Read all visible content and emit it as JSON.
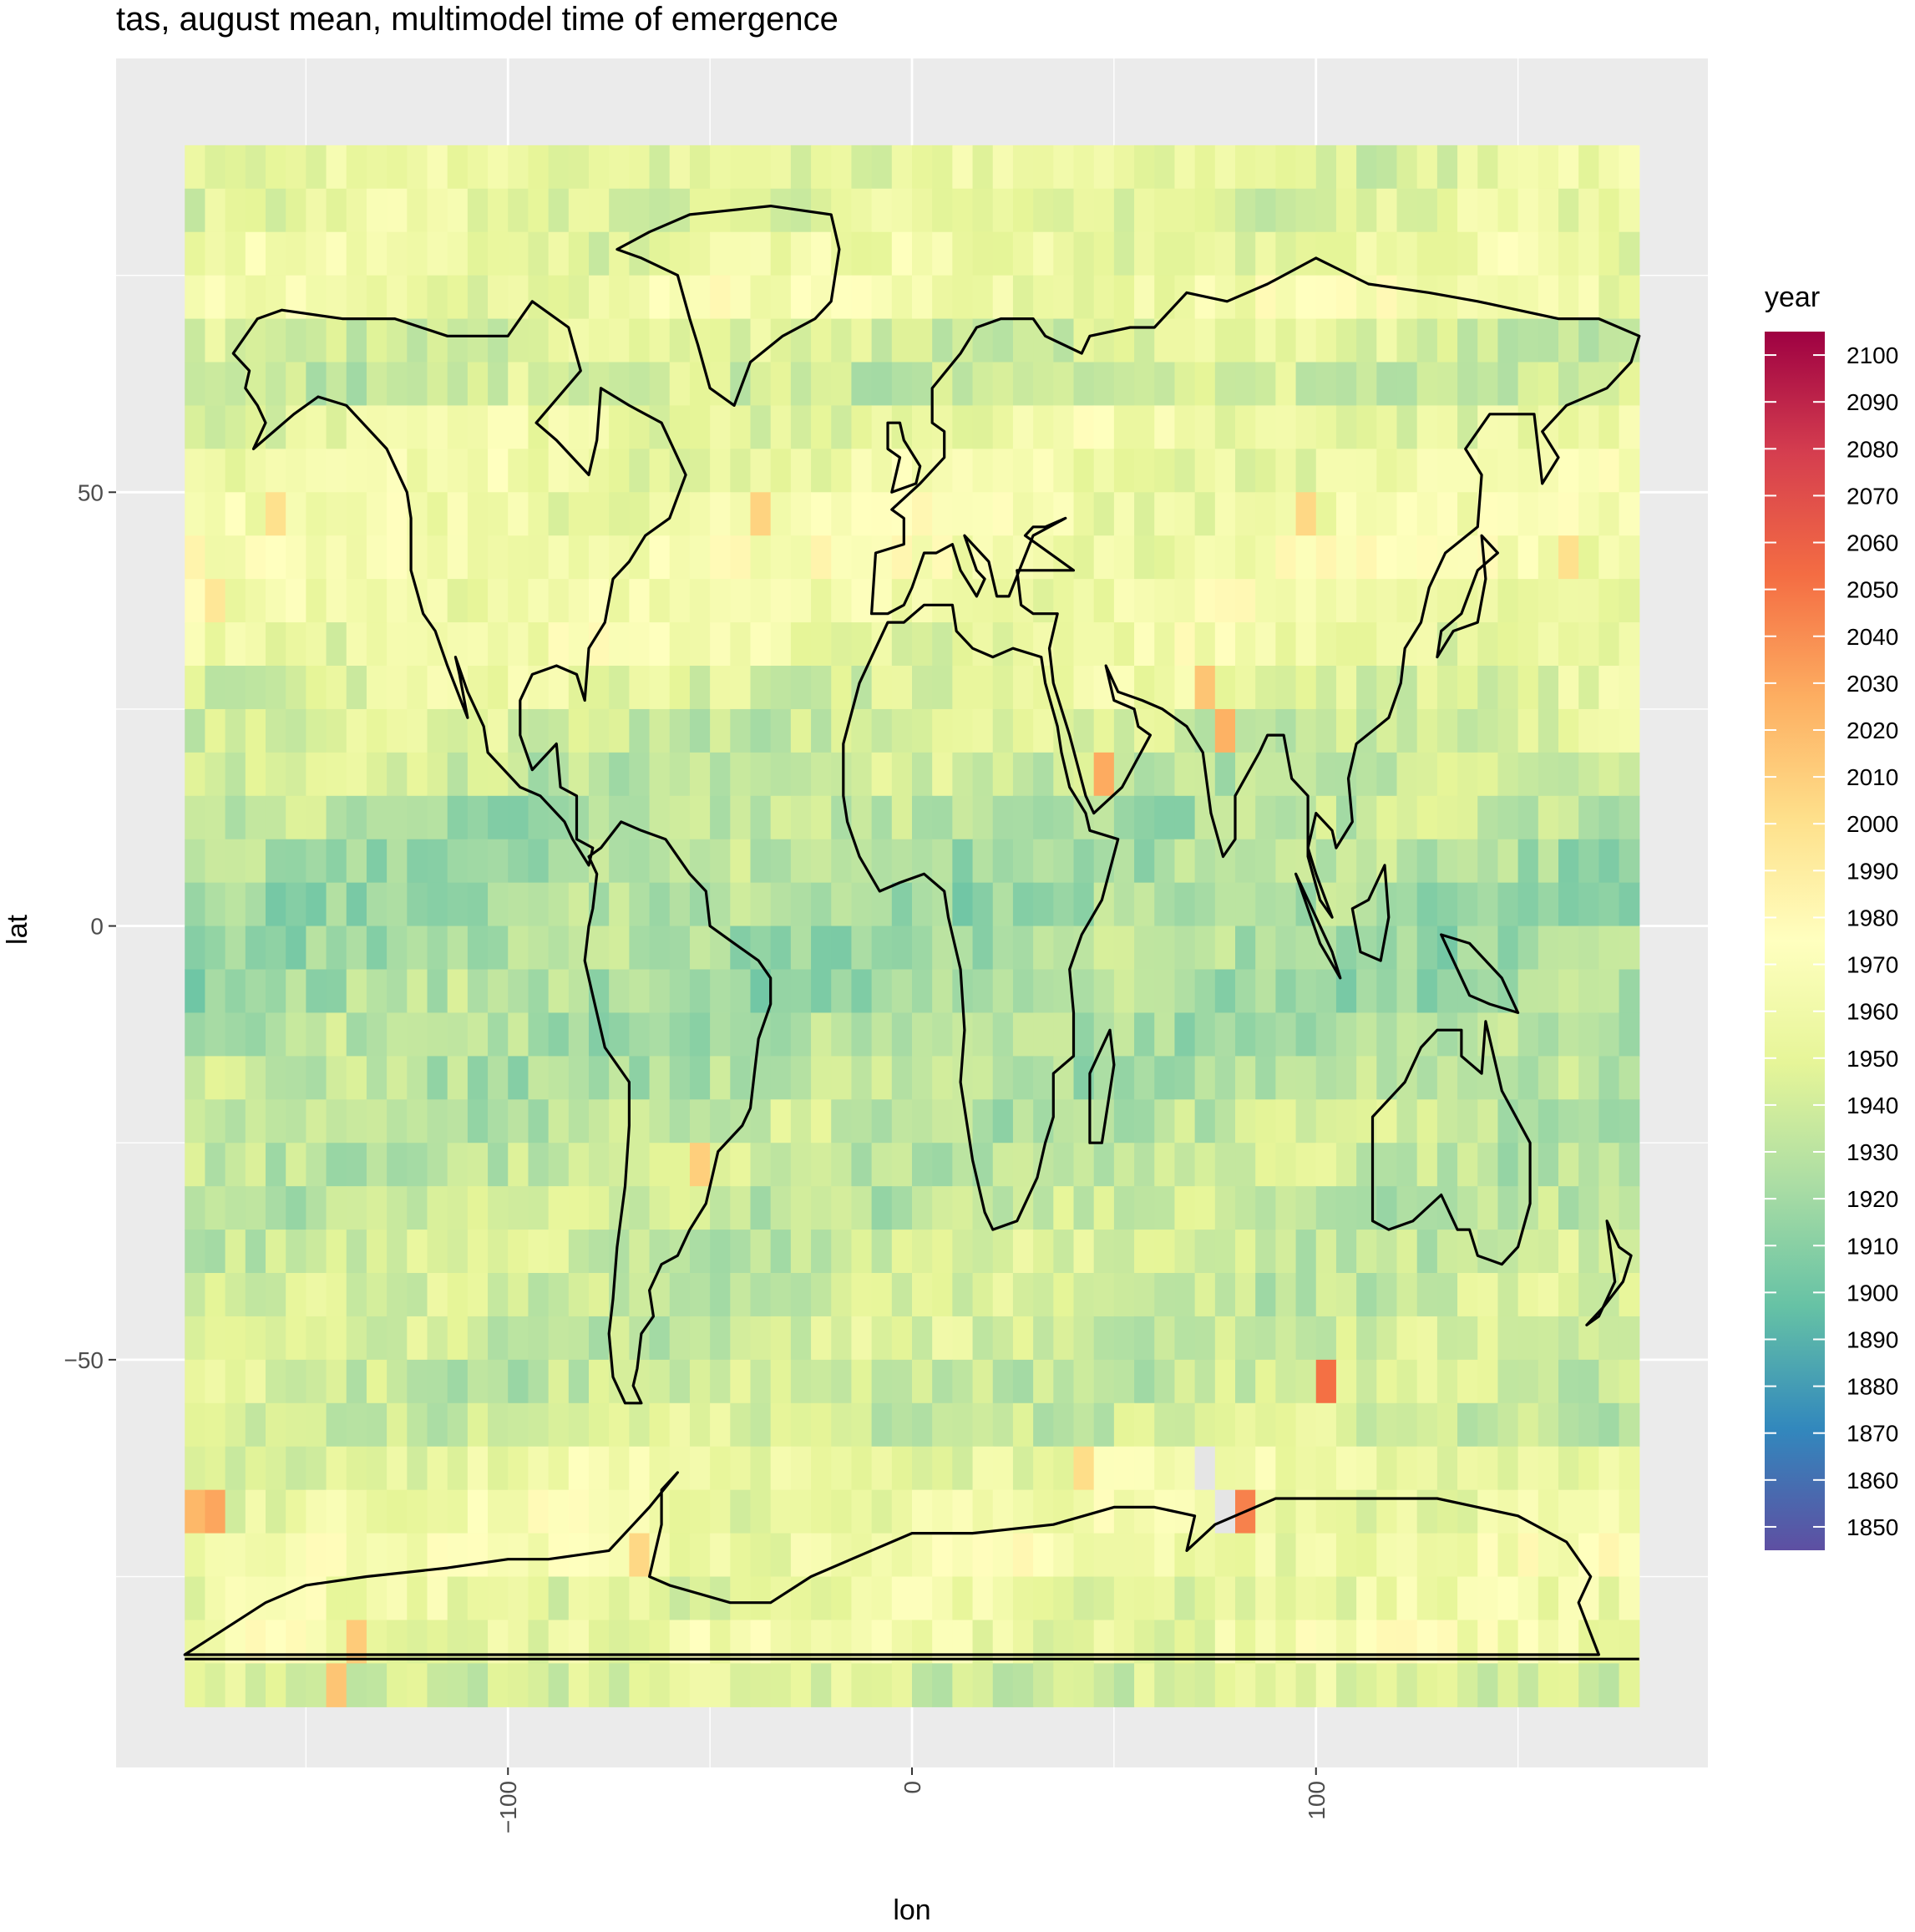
{
  "chart_data": {
    "type": "heatmap",
    "title": "tas, august mean, multimodel time of emergence",
    "xlabel": "lon",
    "ylabel": "lat",
    "xlim": [
      -197,
      197
    ],
    "ylim": [
      -97,
      100
    ],
    "grid": true,
    "legend": {
      "title": "year",
      "position": "right",
      "range": [
        1845,
        2105
      ],
      "ticks": [
        2100,
        2090,
        2080,
        2070,
        2060,
        2050,
        2040,
        2030,
        2020,
        2010,
        2000,
        1990,
        1980,
        1970,
        1960,
        1950,
        1940,
        1930,
        1920,
        1910,
        1900,
        1890,
        1880,
        1870,
        1860,
        1850
      ],
      "palette": [
        "#5E4FA2",
        "#3288BD",
        "#66C2A5",
        "#ABDDA4",
        "#E6F598",
        "#FFFFBF",
        "#FEE08B",
        "#FDAE61",
        "#F46D43",
        "#D53E4F",
        "#9E0142"
      ]
    },
    "x_ticks": [
      -100,
      0,
      100
    ],
    "x_tick_labels": [
      "−100",
      "0",
      "100"
    ],
    "y_ticks": [
      50,
      0,
      -50
    ],
    "y_tick_labels": [
      "50",
      "0",
      "−50"
    ],
    "grid_spec": {
      "lon_start": -180,
      "lon_step": 5,
      "n_lon": 72,
      "lat_top": 90,
      "lat_step": 5,
      "n_lat": 36
    },
    "zonal_mean_toe": [
      1952,
      1948,
      1955,
      1962,
      1945,
      1940,
      1955,
      1958,
      1960,
      1965,
      1962,
      1958,
      1950,
      1942,
      1935,
      1928,
      1925,
      1922,
      1922,
      1922,
      1925,
      1928,
      1932,
      1935,
      1935,
      1938,
      1938,
      1940,
      1938,
      1940,
      1955,
      1958,
      1962,
      1955,
      1960,
      1945
    ],
    "highlight_cells": [
      {
        "lon": 102.5,
        "lat": -52.5,
        "year": 2052
      },
      {
        "lon": 82.5,
        "lat": -67.5,
        "year": 2045
      },
      {
        "lon": -172.5,
        "lat": -67.5,
        "year": 2030
      },
      {
        "lon": -177.5,
        "lat": -67.5,
        "year": 2022
      },
      {
        "lon": 47.5,
        "lat": 17.5,
        "year": 2028
      },
      {
        "lon": 77.5,
        "lat": 22.5,
        "year": 2025
      },
      {
        "lon": 72.5,
        "lat": 27.5,
        "year": 2015
      },
      {
        "lon": -52.5,
        "lat": -27.5,
        "year": 2010
      },
      {
        "lon": -37.5,
        "lat": 47.5,
        "year": 2008
      },
      {
        "lon": 97.5,
        "lat": 47.5,
        "year": 2005
      },
      {
        "lon": -67.5,
        "lat": -72.5,
        "year": 2005
      },
      {
        "lon": -137.5,
        "lat": -82.5,
        "year": 2012
      },
      {
        "lon": -142.5,
        "lat": -87.5,
        "year": 2015
      },
      {
        "lon": 42.5,
        "lat": -62.5,
        "year": 2002
      },
      {
        "lon": -157.5,
        "lat": 47.5,
        "year": 2000
      },
      {
        "lon": 162.5,
        "lat": 42.5,
        "year": 2000
      },
      {
        "lon": -172.5,
        "lat": 37.5,
        "year": 1995
      }
    ],
    "missing_cells": [
      {
        "lon": 72.5,
        "lat": -62.5
      },
      {
        "lon": 77.5,
        "lat": -67.5
      }
    ]
  }
}
